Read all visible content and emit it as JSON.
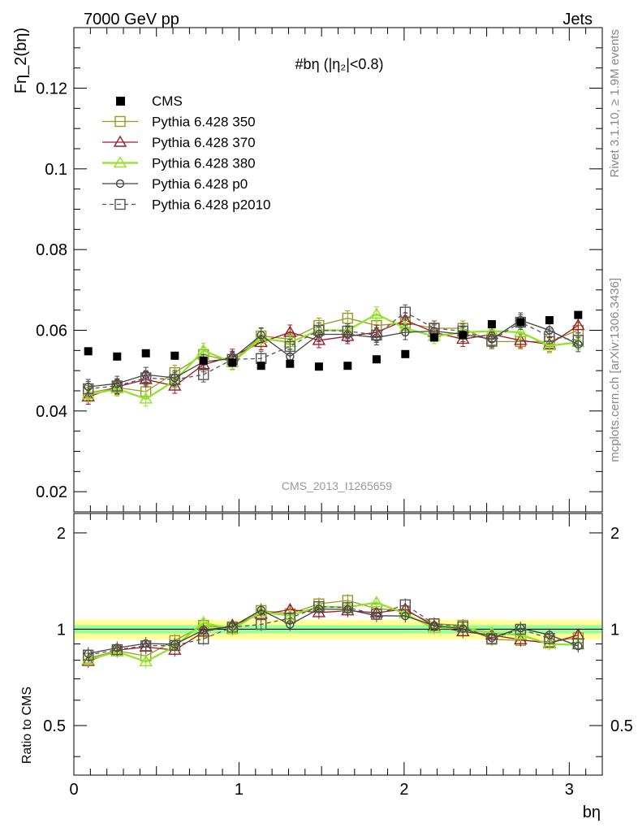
{
  "header": {
    "left": "7000 GeV pp",
    "right": "Jets"
  },
  "side_text": {
    "top": "Rivet 3.1.10, ≥ 1.9M events",
    "bottom": "mcplots.cern.ch [arXiv:1306.3436]"
  },
  "watermark": "CMS_2013_I1265659",
  "main_title": "#bη (|η₂|<0.8)",
  "chart_data": {
    "type": "scatter",
    "xlabel": "bη",
    "ylabel": "Fη_2(bη)",
    "ratio_ylabel": "Ratio to CMS",
    "xlim": [
      0,
      3.2
    ],
    "ylim": [
      0.015,
      0.135
    ],
    "ratio_ylim": [
      0.35,
      2.3
    ],
    "xticks": [
      0,
      1,
      2,
      3
    ],
    "yticks": [
      0.02,
      0.04,
      0.06,
      0.08,
      0.1,
      0.12
    ],
    "ratio_yticks": [
      0.5,
      1,
      2
    ],
    "legend_position": "top-left",
    "x": [
      0.087,
      0.262,
      0.436,
      0.611,
      0.785,
      0.96,
      1.134,
      1.309,
      1.484,
      1.658,
      1.833,
      2.007,
      2.182,
      2.356,
      2.531,
      2.705,
      2.88,
      3.054
    ],
    "cms": {
      "name": "CMS",
      "color": "#000000",
      "values": [
        0.0548,
        0.0535,
        0.0543,
        0.0537,
        0.0525,
        0.052,
        0.0512,
        0.0517,
        0.051,
        0.0512,
        0.0528,
        0.0541,
        0.0582,
        0.0588,
        0.0615,
        0.062,
        0.0625,
        0.0638
      ],
      "band_inner": 0.03,
      "band_outer": 0.07
    },
    "series": [
      {
        "name": "Pythia 6.428 350",
        "color": "#9a9a22",
        "marker": "square",
        "dash": false,
        "values": [
          0.0445,
          0.0458,
          0.0448,
          0.0495,
          0.054,
          0.0522,
          0.0586,
          0.0578,
          0.0612,
          0.063,
          0.0612,
          0.0618,
          0.0605,
          0.0605,
          0.0572,
          0.0572,
          0.0572,
          0.06
        ]
      },
      {
        "name": "Pythia 6.428 370",
        "color": "#9e1a2a",
        "marker": "triangle",
        "dash": false,
        "values": [
          0.0435,
          0.046,
          0.0478,
          0.0462,
          0.0515,
          0.0535,
          0.057,
          0.0595,
          0.0575,
          0.0585,
          0.0595,
          0.0625,
          0.0595,
          0.0578,
          0.059,
          0.0575,
          0.0565,
          0.0612
        ]
      },
      {
        "name": "Pythia 6.428 380",
        "color": "#8ee326",
        "marker": "triangle",
        "dash": false,
        "values": [
          0.044,
          0.0455,
          0.043,
          0.0475,
          0.055,
          0.052,
          0.058,
          0.057,
          0.06,
          0.06,
          0.064,
          0.0605,
          0.0585,
          0.0595,
          0.0598,
          0.0595,
          0.0562,
          0.057
        ]
      },
      {
        "name": "Pythia 6.428 p0",
        "color": "#444444",
        "marker": "circle",
        "dash": false,
        "values": [
          0.046,
          0.0468,
          0.049,
          0.0482,
          0.0522,
          0.053,
          0.0588,
          0.0535,
          0.059,
          0.059,
          0.0582,
          0.0595,
          0.0598,
          0.059,
          0.0578,
          0.0625,
          0.06,
          0.0565
        ]
      },
      {
        "name": "Pythia 6.428 p2010",
        "color": "#555555",
        "marker": "square",
        "dash": true,
        "values": [
          0.0455,
          0.0462,
          0.0482,
          0.0478,
          0.049,
          0.0528,
          0.053,
          0.056,
          0.06,
          0.0598,
          0.0588,
          0.0645,
          0.0605,
          0.0598,
          0.0575,
          0.062,
          0.0585,
          0.0575
        ]
      }
    ]
  }
}
